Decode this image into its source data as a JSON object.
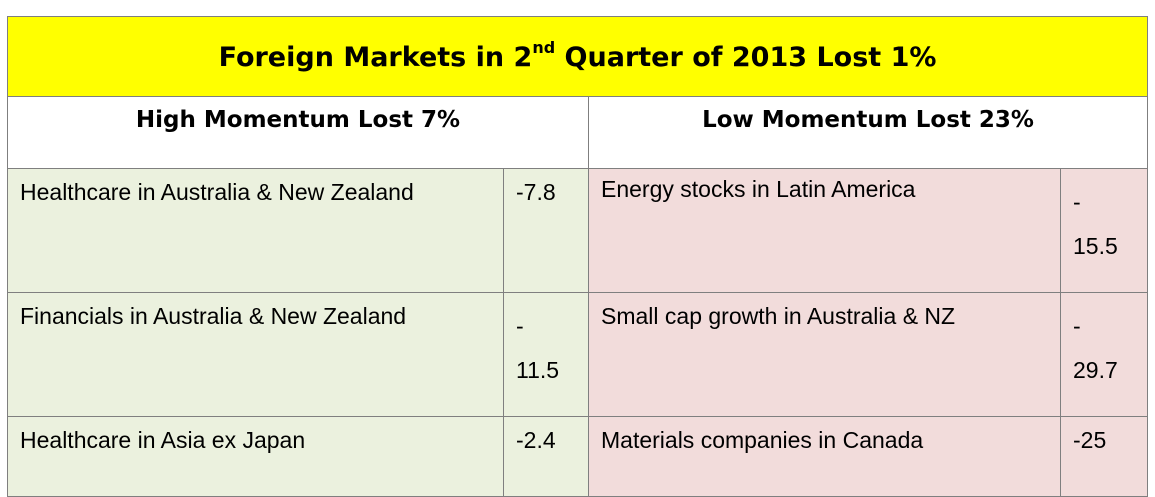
{
  "title": {
    "prefix": "Foreign Markets in 2",
    "superscript": "nd",
    "suffix": " Quarter of 2013 Lost 1%"
  },
  "high": {
    "header": "High Momentum Lost 7%",
    "rows": [
      {
        "name": "Healthcare in Australia & New Zealand",
        "value": "-7.8"
      },
      {
        "name": "Financials in Australia & New Zealand",
        "value": "-11.5"
      },
      {
        "name": "Healthcare in Asia ex Japan",
        "value": "-2.4"
      }
    ]
  },
  "low": {
    "header": "Low Momentum Lost 23%",
    "rows": [
      {
        "name": "Energy stocks in Latin America",
        "value": "-15.5"
      },
      {
        "name": "Small cap growth in Australia & NZ",
        "value": "-29.7"
      },
      {
        "name": "Materials companies in Canada",
        "value": "-25"
      }
    ]
  },
  "colors": {
    "title_bg": "#ffff00",
    "high_bg": "#ebf1de",
    "low_bg": "#f2dcdb",
    "border": "#7f7f7f"
  }
}
